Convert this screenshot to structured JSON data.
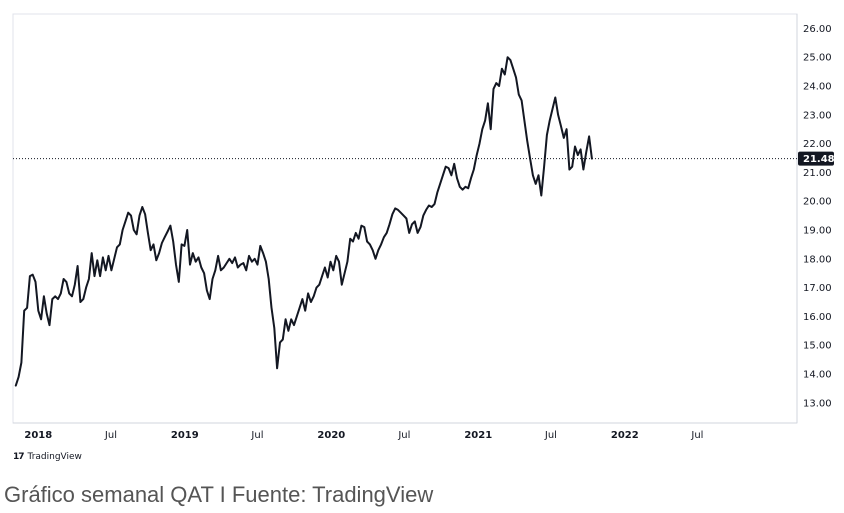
{
  "chart_data": {
    "type": "line",
    "y_ticks": [
      "26.00",
      "25.00",
      "24.00",
      "23.00",
      "22.00",
      "21.00",
      "20.00",
      "19.00",
      "18.00",
      "17.00",
      "16.00",
      "15.00",
      "14.00",
      "13.00"
    ],
    "ylim": [
      12.3,
      26.5
    ],
    "x_ticks": [
      {
        "label": "2018",
        "date": "2018-01-01",
        "bold": true
      },
      {
        "label": "Jul",
        "date": "2018-07-01",
        "bold": false
      },
      {
        "label": "2019",
        "date": "2019-01-01",
        "bold": true
      },
      {
        "label": "Jul",
        "date": "2019-07-01",
        "bold": false
      },
      {
        "label": "2020",
        "date": "2020-01-01",
        "bold": true
      },
      {
        "label": "Jul",
        "date": "2020-07-01",
        "bold": false
      },
      {
        "label": "2021",
        "date": "2021-01-01",
        "bold": true
      },
      {
        "label": "Jul",
        "date": "2021-07-01",
        "bold": false
      },
      {
        "label": "2022",
        "date": "2022-01-01",
        "bold": true
      },
      {
        "label": "Jul",
        "date": "2022-07-01",
        "bold": false
      }
    ],
    "xlim": [
      "2017-10-30",
      "2023-03-06"
    ],
    "last_price": {
      "label": "21.48",
      "value": 21.48
    },
    "series": [
      {
        "color": "#131722",
        "points": [
          [
            "2017-11-06",
            13.6
          ],
          [
            "2017-11-13",
            13.9
          ],
          [
            "2017-11-20",
            14.4
          ],
          [
            "2017-11-27",
            16.2
          ],
          [
            "2017-12-04",
            16.3
          ],
          [
            "2017-12-11",
            17.4
          ],
          [
            "2017-12-18",
            17.45
          ],
          [
            "2017-12-25",
            17.2
          ],
          [
            "2018-01-01",
            16.2
          ],
          [
            "2018-01-08",
            15.9
          ],
          [
            "2018-01-15",
            16.7
          ],
          [
            "2018-01-22",
            16.1
          ],
          [
            "2018-01-29",
            15.7
          ],
          [
            "2018-02-05",
            16.6
          ],
          [
            "2018-02-12",
            16.7
          ],
          [
            "2018-02-19",
            16.6
          ],
          [
            "2018-02-26",
            16.8
          ],
          [
            "2018-03-05",
            17.3
          ],
          [
            "2018-03-12",
            17.2
          ],
          [
            "2018-03-19",
            16.8
          ],
          [
            "2018-03-26",
            16.7
          ],
          [
            "2018-04-02",
            17.1
          ],
          [
            "2018-04-09",
            17.75
          ],
          [
            "2018-04-16",
            16.5
          ],
          [
            "2018-04-23",
            16.6
          ],
          [
            "2018-04-30",
            17.0
          ],
          [
            "2018-05-07",
            17.3
          ],
          [
            "2018-05-14",
            18.2
          ],
          [
            "2018-05-21",
            17.4
          ],
          [
            "2018-05-28",
            17.95
          ],
          [
            "2018-06-04",
            17.4
          ],
          [
            "2018-06-11",
            18.05
          ],
          [
            "2018-06-18",
            17.6
          ],
          [
            "2018-06-25",
            18.1
          ],
          [
            "2018-07-02",
            17.6
          ],
          [
            "2018-07-09",
            18.0
          ],
          [
            "2018-07-16",
            18.4
          ],
          [
            "2018-07-23",
            18.5
          ],
          [
            "2018-07-30",
            19.0
          ],
          [
            "2018-08-06",
            19.3
          ],
          [
            "2018-08-13",
            19.6
          ],
          [
            "2018-08-20",
            19.5
          ],
          [
            "2018-08-27",
            19.0
          ],
          [
            "2018-09-03",
            18.85
          ],
          [
            "2018-09-10",
            19.5
          ],
          [
            "2018-09-17",
            19.8
          ],
          [
            "2018-09-24",
            19.55
          ],
          [
            "2018-10-01",
            18.9
          ],
          [
            "2018-10-08",
            18.3
          ],
          [
            "2018-10-15",
            18.5
          ],
          [
            "2018-10-22",
            17.95
          ],
          [
            "2018-10-29",
            18.2
          ],
          [
            "2018-11-05",
            18.55
          ],
          [
            "2018-11-12",
            18.75
          ],
          [
            "2018-11-19",
            18.95
          ],
          [
            "2018-11-26",
            19.15
          ],
          [
            "2018-12-03",
            18.6
          ],
          [
            "2018-12-10",
            17.8
          ],
          [
            "2018-12-17",
            17.2
          ],
          [
            "2018-12-24",
            18.5
          ],
          [
            "2018-12-31",
            18.45
          ],
          [
            "2019-01-07",
            19.0
          ],
          [
            "2019-01-14",
            17.8
          ],
          [
            "2019-01-21",
            18.2
          ],
          [
            "2019-01-28",
            17.9
          ],
          [
            "2019-02-04",
            18.05
          ],
          [
            "2019-02-11",
            17.7
          ],
          [
            "2019-02-18",
            17.5
          ],
          [
            "2019-02-25",
            16.9
          ],
          [
            "2019-03-04",
            16.6
          ],
          [
            "2019-03-11",
            17.3
          ],
          [
            "2019-03-18",
            17.6
          ],
          [
            "2019-03-25",
            18.1
          ],
          [
            "2019-04-01",
            17.6
          ],
          [
            "2019-04-08",
            17.7
          ],
          [
            "2019-04-15",
            17.85
          ],
          [
            "2019-04-22",
            18.0
          ],
          [
            "2019-04-29",
            17.85
          ],
          [
            "2019-05-06",
            18.05
          ],
          [
            "2019-05-13",
            17.7
          ],
          [
            "2019-05-20",
            17.8
          ],
          [
            "2019-05-27",
            17.85
          ],
          [
            "2019-06-03",
            17.6
          ],
          [
            "2019-06-10",
            18.1
          ],
          [
            "2019-06-17",
            17.9
          ],
          [
            "2019-06-24",
            18.0
          ],
          [
            "2019-07-01",
            17.8
          ],
          [
            "2019-07-08",
            18.45
          ],
          [
            "2019-07-15",
            18.2
          ],
          [
            "2019-07-22",
            17.9
          ],
          [
            "2019-07-29",
            17.3
          ],
          [
            "2019-08-05",
            16.3
          ],
          [
            "2019-08-12",
            15.6
          ],
          [
            "2019-08-19",
            14.2
          ],
          [
            "2019-08-26",
            15.1
          ],
          [
            "2019-09-02",
            15.2
          ],
          [
            "2019-09-09",
            15.9
          ],
          [
            "2019-09-16",
            15.5
          ],
          [
            "2019-09-23",
            15.9
          ],
          [
            "2019-09-30",
            15.7
          ],
          [
            "2019-10-07",
            16.0
          ],
          [
            "2019-10-14",
            16.3
          ],
          [
            "2019-10-21",
            16.6
          ],
          [
            "2019-10-28",
            16.2
          ],
          [
            "2019-11-04",
            16.8
          ],
          [
            "2019-11-11",
            16.5
          ],
          [
            "2019-11-18",
            16.7
          ],
          [
            "2019-11-25",
            17.0
          ],
          [
            "2019-12-02",
            17.1
          ],
          [
            "2019-12-09",
            17.4
          ],
          [
            "2019-12-16",
            17.7
          ],
          [
            "2019-12-23",
            17.35
          ],
          [
            "2019-12-30",
            17.9
          ],
          [
            "2020-01-06",
            17.6
          ],
          [
            "2020-01-13",
            18.1
          ],
          [
            "2020-01-20",
            17.9
          ],
          [
            "2020-01-27",
            17.1
          ],
          [
            "2020-02-03",
            17.5
          ],
          [
            "2020-02-10",
            17.9
          ],
          [
            "2020-02-17",
            18.7
          ],
          [
            "2020-02-24",
            18.6
          ],
          [
            "2020-03-02",
            18.9
          ],
          [
            "2020-03-09",
            18.7
          ],
          [
            "2020-03-16",
            19.15
          ],
          [
            "2020-03-23",
            19.1
          ],
          [
            "2020-03-30",
            18.6
          ],
          [
            "2020-04-06",
            18.5
          ],
          [
            "2020-04-13",
            18.3
          ],
          [
            "2020-04-20",
            18.0
          ],
          [
            "2020-04-27",
            18.3
          ],
          [
            "2020-05-04",
            18.5
          ],
          [
            "2020-05-11",
            18.75
          ],
          [
            "2020-05-18",
            18.9
          ],
          [
            "2020-05-25",
            19.2
          ],
          [
            "2020-06-01",
            19.55
          ],
          [
            "2020-06-08",
            19.75
          ],
          [
            "2020-06-15",
            19.7
          ],
          [
            "2020-06-22",
            19.6
          ],
          [
            "2020-06-29",
            19.5
          ],
          [
            "2020-07-06",
            19.4
          ],
          [
            "2020-07-13",
            18.9
          ],
          [
            "2020-07-20",
            19.2
          ],
          [
            "2020-07-27",
            19.3
          ],
          [
            "2020-08-03",
            18.9
          ],
          [
            "2020-08-10",
            19.1
          ],
          [
            "2020-08-17",
            19.5
          ],
          [
            "2020-08-24",
            19.7
          ],
          [
            "2020-08-31",
            19.85
          ],
          [
            "2020-09-07",
            19.8
          ],
          [
            "2020-09-14",
            19.9
          ],
          [
            "2020-09-21",
            20.3
          ],
          [
            "2020-09-28",
            20.6
          ],
          [
            "2020-10-05",
            20.9
          ],
          [
            "2020-10-12",
            21.2
          ],
          [
            "2020-10-19",
            21.15
          ],
          [
            "2020-10-26",
            20.9
          ],
          [
            "2020-11-02",
            21.3
          ],
          [
            "2020-11-09",
            20.8
          ],
          [
            "2020-11-16",
            20.5
          ],
          [
            "2020-11-23",
            20.4
          ],
          [
            "2020-11-30",
            20.5
          ],
          [
            "2020-12-07",
            20.45
          ],
          [
            "2020-12-14",
            20.8
          ],
          [
            "2020-12-21",
            21.1
          ],
          [
            "2020-12-28",
            21.6
          ],
          [
            "2021-01-04",
            22.0
          ],
          [
            "2021-01-11",
            22.5
          ],
          [
            "2021-01-18",
            22.8
          ],
          [
            "2021-01-25",
            23.4
          ],
          [
            "2021-02-01",
            22.5
          ],
          [
            "2021-02-08",
            23.9
          ],
          [
            "2021-02-15",
            24.1
          ],
          [
            "2021-02-22",
            24.0
          ],
          [
            "2021-03-01",
            24.6
          ],
          [
            "2021-03-08",
            24.4
          ],
          [
            "2021-03-15",
            25.0
          ],
          [
            "2021-03-22",
            24.9
          ],
          [
            "2021-03-29",
            24.6
          ],
          [
            "2021-04-05",
            24.3
          ],
          [
            "2021-04-12",
            23.7
          ],
          [
            "2021-04-19",
            23.5
          ],
          [
            "2021-04-26",
            22.8
          ],
          [
            "2021-05-03",
            22.1
          ],
          [
            "2021-05-10",
            21.5
          ],
          [
            "2021-05-17",
            20.9
          ],
          [
            "2021-05-24",
            20.6
          ],
          [
            "2021-05-31",
            20.9
          ],
          [
            "2021-06-07",
            20.2
          ],
          [
            "2021-06-14",
            21.2
          ],
          [
            "2021-06-21",
            22.3
          ],
          [
            "2021-06-28",
            22.8
          ],
          [
            "2021-07-05",
            23.2
          ],
          [
            "2021-07-12",
            23.6
          ],
          [
            "2021-07-19",
            23.0
          ],
          [
            "2021-07-26",
            22.6
          ],
          [
            "2021-08-02",
            22.2
          ],
          [
            "2021-08-09",
            22.5
          ],
          [
            "2021-08-16",
            21.1
          ],
          [
            "2021-08-23",
            21.2
          ],
          [
            "2021-08-30",
            21.9
          ],
          [
            "2021-09-06",
            21.6
          ],
          [
            "2021-09-13",
            21.8
          ],
          [
            "2021-09-20",
            21.1
          ],
          [
            "2021-09-27",
            21.7
          ],
          [
            "2021-10-04",
            22.25
          ],
          [
            "2021-10-11",
            21.48
          ]
        ]
      }
    ]
  },
  "watermark": {
    "logo": "17",
    "text": "TradingView"
  },
  "caption": "Gráfico semanal QAT I Fuente: TradingView"
}
